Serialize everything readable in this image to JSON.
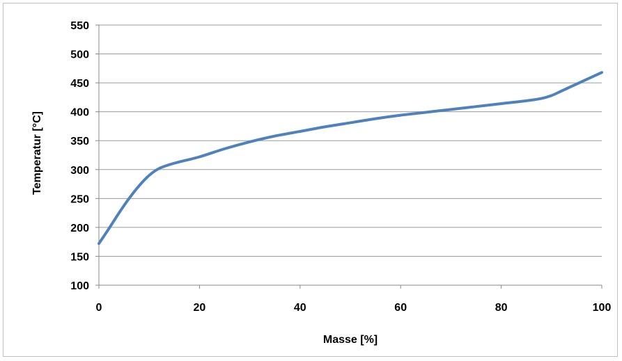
{
  "chart_data": {
    "type": "line",
    "xlabel": "Masse [%]",
    "ylabel": "Temperatur [°C]",
    "xlim": [
      0,
      100
    ],
    "ylim": [
      100,
      550
    ],
    "x_ticks": [
      0,
      20,
      40,
      60,
      80,
      100
    ],
    "y_ticks": [
      100,
      150,
      200,
      250,
      300,
      350,
      400,
      450,
      500,
      550
    ],
    "grid": "horizontal",
    "series_color": "#4f81bd",
    "series": [
      {
        "x": [
          0,
          2,
          4,
          6,
          8,
          10,
          12,
          15,
          20,
          25,
          30,
          35,
          40,
          45,
          50,
          55,
          60,
          65,
          70,
          75,
          80,
          85,
          88,
          90,
          92,
          95,
          98,
          100
        ],
        "y": [
          172,
          198,
          225,
          250,
          272,
          290,
          302,
          311,
          322,
          336,
          348,
          358,
          366,
          374,
          381,
          388,
          394,
          399,
          404,
          409,
          414,
          419,
          423,
          428,
          436,
          448,
          460,
          468
        ]
      }
    ]
  }
}
